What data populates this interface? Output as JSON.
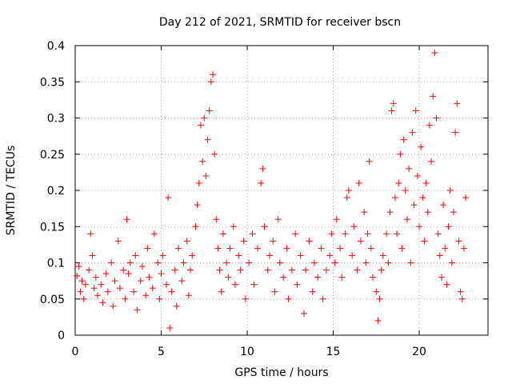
{
  "chart_data": {
    "type": "scatter",
    "title": "Day 212 of 2021, SRMTID for receiver bscn",
    "xlabel": "GPS time / hours",
    "ylabel": "SRMTID / TECUs",
    "xlim": [
      0,
      24
    ],
    "ylim": [
      0,
      0.4
    ],
    "x_ticks": [
      0,
      5,
      10,
      15,
      20
    ],
    "x_tick_labels": [
      "0",
      "5",
      "10",
      "15",
      "20"
    ],
    "y_ticks": [
      0,
      0.05,
      0.1,
      0.15,
      0.2,
      0.25,
      0.3,
      0.35,
      0.4
    ],
    "y_tick_labels": [
      "0",
      "0.05",
      "0.1",
      "0.15",
      "0.2",
      "0.25",
      "0.3",
      "0.35",
      "0.4"
    ],
    "grid": true,
    "marker": "+",
    "series": [
      {
        "name": "SRMTID",
        "color": "#ff0000",
        "points": [
          [
            0.1,
            0.082
          ],
          [
            0.2,
            0.095
          ],
          [
            0.3,
            0.06
          ],
          [
            0.4,
            0.075
          ],
          [
            0.5,
            0.05
          ],
          [
            0.6,
            0.07
          ],
          [
            0.8,
            0.09
          ],
          [
            0.9,
            0.14
          ],
          [
            1.0,
            0.11
          ],
          [
            1.1,
            0.065
          ],
          [
            1.2,
            0.08
          ],
          [
            1.3,
            0.055
          ],
          [
            1.5,
            0.07
          ],
          [
            1.6,
            0.045
          ],
          [
            1.8,
            0.085
          ],
          [
            1.9,
            0.06
          ],
          [
            2.1,
            0.1
          ],
          [
            2.2,
            0.04
          ],
          [
            2.3,
            0.075
          ],
          [
            2.5,
            0.13
          ],
          [
            2.6,
            0.065
          ],
          [
            2.8,
            0.09
          ],
          [
            2.9,
            0.05
          ],
          [
            3.0,
            0.16
          ],
          [
            3.1,
            0.085
          ],
          [
            3.2,
            0.1
          ],
          [
            3.4,
            0.06
          ],
          [
            3.5,
            0.11
          ],
          [
            3.6,
            0.035
          ],
          [
            3.8,
            0.075
          ],
          [
            3.9,
            0.095
          ],
          [
            4.1,
            0.055
          ],
          [
            4.2,
            0.12
          ],
          [
            4.3,
            0.08
          ],
          [
            4.5,
            0.065
          ],
          [
            4.6,
            0.14
          ],
          [
            4.8,
            0.1
          ],
          [
            4.9,
            0.05
          ],
          [
            5.0,
            0.085
          ],
          [
            5.1,
            0.11
          ],
          [
            5.3,
            0.07
          ],
          [
            5.4,
            0.19
          ],
          [
            5.5,
            0.01
          ],
          [
            5.6,
            0.06
          ],
          [
            5.8,
            0.09
          ],
          [
            5.9,
            0.04
          ],
          [
            6.0,
            0.12
          ],
          [
            6.2,
            0.075
          ],
          [
            6.3,
            0.1
          ],
          [
            6.5,
            0.13
          ],
          [
            6.6,
            0.055
          ],
          [
            6.7,
            0.09
          ],
          [
            6.8,
            0.11
          ],
          [
            7.0,
            0.15
          ],
          [
            7.1,
            0.18
          ],
          [
            7.2,
            0.21
          ],
          [
            7.3,
            0.29
          ],
          [
            7.4,
            0.24
          ],
          [
            7.5,
            0.3
          ],
          [
            7.6,
            0.22
          ],
          [
            7.7,
            0.27
          ],
          [
            7.8,
            0.31
          ],
          [
            7.9,
            0.35
          ],
          [
            8.0,
            0.36
          ],
          [
            8.1,
            0.25
          ],
          [
            8.2,
            0.16
          ],
          [
            8.3,
            0.12
          ],
          [
            8.4,
            0.09
          ],
          [
            8.5,
            0.06
          ],
          [
            8.6,
            0.14
          ],
          [
            8.8,
            0.1
          ],
          [
            8.9,
            0.08
          ],
          [
            9.0,
            0.12
          ],
          [
            9.2,
            0.15
          ],
          [
            9.3,
            0.07
          ],
          [
            9.5,
            0.11
          ],
          [
            9.6,
            0.09
          ],
          [
            9.8,
            0.13
          ],
          [
            9.9,
            0.05
          ],
          [
            10.1,
            0.1
          ],
          [
            10.3,
            0.14
          ],
          [
            10.4,
            0.07
          ],
          [
            10.6,
            0.12
          ],
          [
            10.8,
            0.21
          ],
          [
            10.9,
            0.23
          ],
          [
            11.0,
            0.15
          ],
          [
            11.2,
            0.09
          ],
          [
            11.3,
            0.11
          ],
          [
            11.5,
            0.13
          ],
          [
            11.6,
            0.06
          ],
          [
            11.8,
            0.16
          ],
          [
            11.9,
            0.1
          ],
          [
            12.1,
            0.08
          ],
          [
            12.3,
            0.12
          ],
          [
            12.4,
            0.05
          ],
          [
            12.6,
            0.09
          ],
          [
            12.8,
            0.14
          ],
          [
            12.9,
            0.07
          ],
          [
            13.1,
            0.11
          ],
          [
            13.3,
            0.03
          ],
          [
            13.4,
            0.09
          ],
          [
            13.6,
            0.13
          ],
          [
            13.8,
            0.06
          ],
          [
            13.9,
            0.1
          ],
          [
            14.1,
            0.08
          ],
          [
            14.3,
            0.12
          ],
          [
            14.4,
            0.05
          ],
          [
            14.6,
            0.09
          ],
          [
            14.8,
            0.11
          ],
          [
            14.9,
            0.14
          ],
          [
            15.1,
            0.1
          ],
          [
            15.2,
            0.16
          ],
          [
            15.4,
            0.12
          ],
          [
            15.5,
            0.08
          ],
          [
            15.7,
            0.14
          ],
          [
            15.8,
            0.19
          ],
          [
            15.9,
            0.2
          ],
          [
            16.1,
            0.11
          ],
          [
            16.2,
            0.15
          ],
          [
            16.4,
            0.09
          ],
          [
            16.5,
            0.21
          ],
          [
            16.6,
            0.13
          ],
          [
            16.8,
            0.17
          ],
          [
            16.9,
            0.1
          ],
          [
            17.0,
            0.14
          ],
          [
            17.1,
            0.24
          ],
          [
            17.2,
            0.12
          ],
          [
            17.3,
            0.08
          ],
          [
            17.5,
            0.06
          ],
          [
            17.6,
            0.02
          ],
          [
            17.7,
            0.05
          ],
          [
            17.8,
            0.09
          ],
          [
            17.9,
            0.11
          ],
          [
            18.1,
            0.14
          ],
          [
            18.2,
            0.1
          ],
          [
            18.3,
            0.17
          ],
          [
            18.4,
            0.31
          ],
          [
            18.5,
            0.32
          ],
          [
            18.6,
            0.19
          ],
          [
            18.7,
            0.14
          ],
          [
            18.8,
            0.21
          ],
          [
            18.9,
            0.25
          ],
          [
            19.0,
            0.12
          ],
          [
            19.1,
            0.27
          ],
          [
            19.2,
            0.2
          ],
          [
            19.3,
            0.16
          ],
          [
            19.4,
            0.23
          ],
          [
            19.5,
            0.1
          ],
          [
            19.6,
            0.28
          ],
          [
            19.7,
            0.18
          ],
          [
            19.8,
            0.31
          ],
          [
            19.9,
            0.22
          ],
          [
            20.0,
            0.15
          ],
          [
            20.1,
            0.26
          ],
          [
            20.2,
            0.19
          ],
          [
            20.3,
            0.13
          ],
          [
            20.4,
            0.21
          ],
          [
            20.5,
            0.17
          ],
          [
            20.6,
            0.29
          ],
          [
            20.7,
            0.24
          ],
          [
            20.8,
            0.33
          ],
          [
            20.9,
            0.39
          ],
          [
            21.0,
            0.3
          ],
          [
            21.1,
            0.14
          ],
          [
            21.2,
            0.11
          ],
          [
            21.3,
            0.08
          ],
          [
            21.4,
            0.18
          ],
          [
            21.5,
            0.12
          ],
          [
            21.6,
            0.07
          ],
          [
            21.7,
            0.15
          ],
          [
            21.8,
            0.2
          ],
          [
            21.9,
            0.1
          ],
          [
            22.0,
            0.17
          ],
          [
            22.1,
            0.28
          ],
          [
            22.2,
            0.32
          ],
          [
            22.3,
            0.13
          ],
          [
            22.4,
            0.06
          ],
          [
            22.5,
            0.05
          ],
          [
            22.6,
            0.12
          ],
          [
            22.7,
            0.19
          ]
        ]
      }
    ]
  }
}
